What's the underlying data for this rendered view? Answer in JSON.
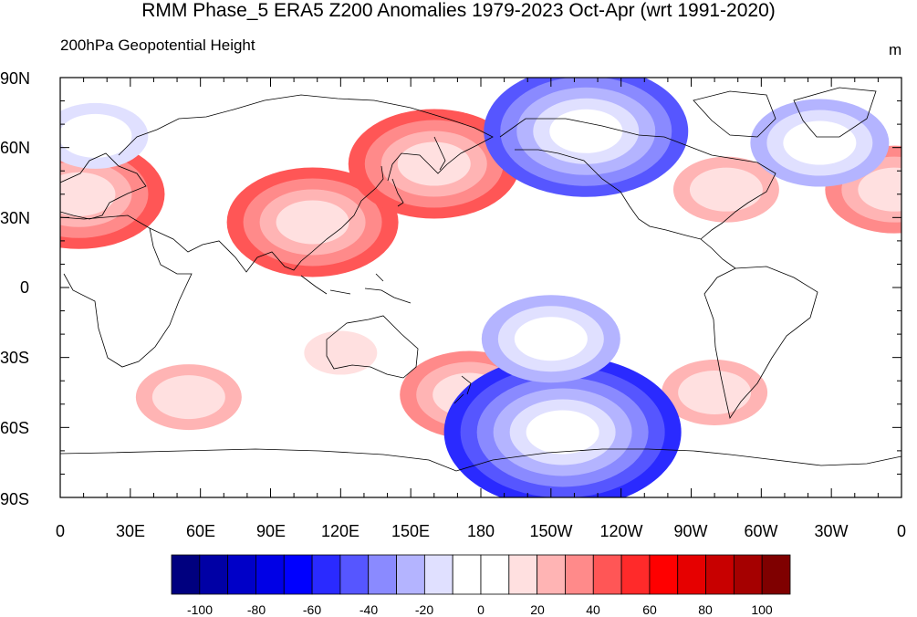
{
  "map": {
    "title": "RMM Phase_5 ERA5 Z200 Anomalies 1979-2023 Oct-Apr (wrt 1991-2020)",
    "subtitle": "200hPa Geopotential Height",
    "units": "m",
    "lat_labels": [
      "90N",
      "60N",
      "30N",
      "0",
      "30S",
      "60S",
      "90S"
    ],
    "lon_labels": [
      "0",
      "30E",
      "60E",
      "90E",
      "120E",
      "150E",
      "180",
      "150W",
      "120W",
      "90W",
      "60W",
      "30W",
      "0"
    ]
  },
  "colorbar": {
    "labels": [
      "-100",
      "-80",
      "-60",
      "-40",
      "-20",
      "0",
      "20",
      "40",
      "60",
      "80",
      "100"
    ],
    "colors": [
      "#00007f",
      "#0000a5",
      "#0000c8",
      "#0000e6",
      "#0000ff",
      "#2a2aff",
      "#5656ff",
      "#8a8aff",
      "#b4b4ff",
      "#e0e0ff",
      "#ffffff",
      "#ffffff",
      "#ffe0e0",
      "#ffb4b4",
      "#ff8a8a",
      "#ff5656",
      "#ff2a2a",
      "#ff0000",
      "#e60000",
      "#c80000",
      "#a50000",
      "#7f0000"
    ]
  },
  "chart_data": {
    "type": "heatmap",
    "variable": "200hPa Geopotential Height anomaly",
    "units": "m",
    "lon_range": [
      0,
      360
    ],
    "lat_range": [
      -90,
      90
    ],
    "contour_levels": [
      -100,
      -90,
      -80,
      -70,
      -60,
      -50,
      -40,
      -30,
      -20,
      -10,
      0,
      10,
      20,
      30,
      40,
      50,
      60,
      70,
      80,
      90,
      100
    ],
    "anomaly_centers": [
      {
        "lon": 108,
        "lat": 28,
        "value": 45
      },
      {
        "lon": 160,
        "lat": 53,
        "value": 40
      },
      {
        "lon": 8,
        "lat": 40,
        "value": 40
      },
      {
        "lon": 357,
        "lat": 42,
        "value": 38
      },
      {
        "lon": 285,
        "lat": 42,
        "value": 22
      },
      {
        "lon": 55,
        "lat": -47,
        "value": 25
      },
      {
        "lon": 175,
        "lat": -46,
        "value": 32
      },
      {
        "lon": 280,
        "lat": -45,
        "value": 28
      },
      {
        "lon": 120,
        "lat": -28,
        "value": 18
      },
      {
        "lon": 215,
        "lat": -62,
        "value": -60
      },
      {
        "lon": 225,
        "lat": 67,
        "value": -55
      },
      {
        "lon": 325,
        "lat": 62,
        "value": -35
      },
      {
        "lon": 15,
        "lat": 65,
        "value": -25
      },
      {
        "lon": 210,
        "lat": -22,
        "value": -30
      },
      {
        "lon": 220,
        "lat": 18,
        "value": -12
      }
    ]
  }
}
